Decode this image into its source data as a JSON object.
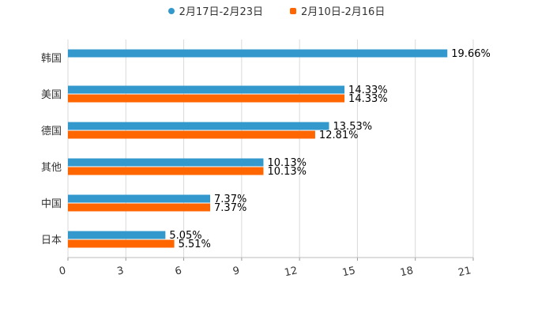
{
  "chart_data": {
    "type": "bar",
    "orientation": "horizontal",
    "categories": [
      "韩国",
      "美国",
      "德国",
      "其他",
      "中国",
      "日本"
    ],
    "series": [
      {
        "name": "2月17日-2月23日",
        "color": "#3399CC",
        "values": [
          19.66,
          14.33,
          13.53,
          10.13,
          7.37,
          5.05
        ],
        "labels": [
          "19.66%",
          "14.33%",
          "13.53%",
          "10.13%",
          "7.37%",
          "5.05%"
        ]
      },
      {
        "name": "2月10日-2月16日",
        "color": "#FF6600",
        "values": [
          null,
          14.33,
          12.81,
          10.13,
          7.37,
          5.51
        ],
        "labels": [
          "",
          "14.33%",
          "12.81%",
          "10.13%",
          "7.37%",
          "5.51%"
        ]
      }
    ],
    "xticks": [
      "0",
      "3",
      "6",
      "9",
      "12",
      "15",
      "18",
      "21"
    ],
    "xlim": [
      0,
      21
    ],
    "grid": true,
    "legend": "top-center"
  }
}
